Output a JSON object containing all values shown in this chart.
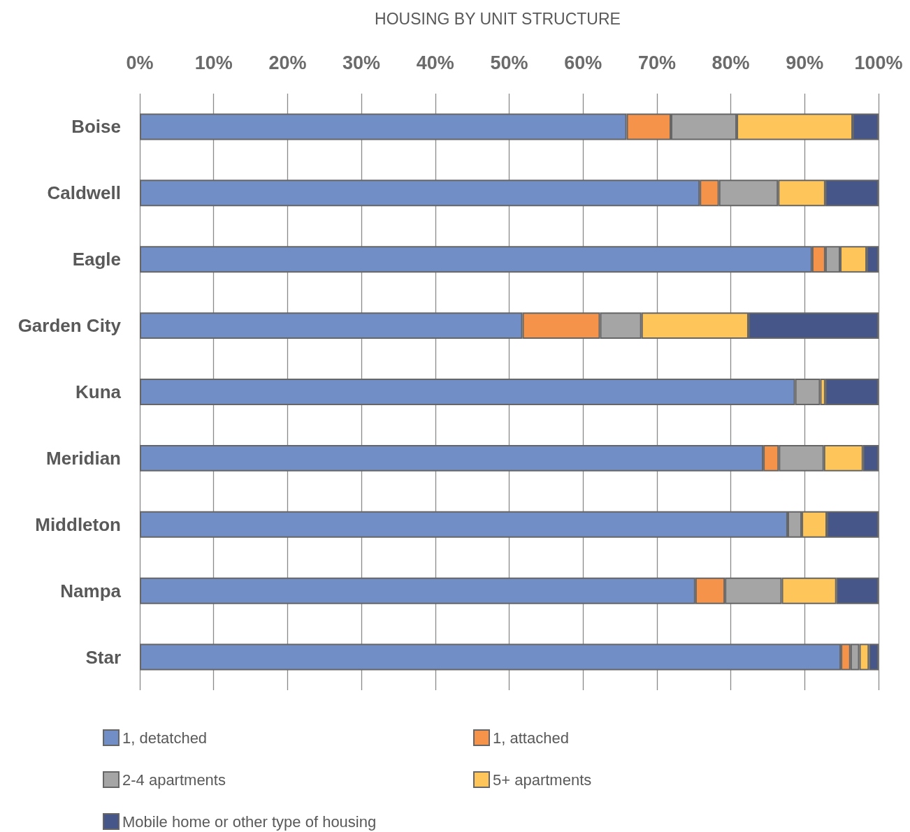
{
  "chart_data": {
    "type": "bar",
    "orientation": "horizontal",
    "stacked": true,
    "title": "HOUSING BY UNIT STRUCTURE",
    "categories": [
      "Boise",
      "Caldwell",
      "Eagle",
      "Garden City",
      "Kuna",
      "Meridian",
      "Middleton",
      "Nampa",
      "Star"
    ],
    "series": [
      {
        "name": "1, detatched",
        "color": "#728ec7",
        "values": [
          65.9,
          75.8,
          91.0,
          51.8,
          88.7,
          84.4,
          87.7,
          75.2,
          94.9
        ]
      },
      {
        "name": "1, attached",
        "color": "#f5934a",
        "values": [
          6.0,
          2.6,
          1.8,
          10.5,
          0,
          2.1,
          0,
          4.0,
          1.3
        ]
      },
      {
        "name": "2-4 apartments",
        "color": "#a5a5a5",
        "values": [
          8.9,
          8.0,
          2.0,
          5.6,
          3.4,
          6.1,
          1.9,
          7.7,
          1.2
        ]
      },
      {
        "name": "5+ apartments",
        "color": "#fec55a",
        "values": [
          15.7,
          6.4,
          3.6,
          14.5,
          0.7,
          5.3,
          3.4,
          7.4,
          1.3
        ]
      },
      {
        "name": "Mobile home or other type of housing",
        "color": "#465689",
        "values": [
          3.5,
          7.2,
          1.6,
          17.6,
          7.2,
          2.1,
          7.0,
          5.7,
          1.3
        ]
      }
    ],
    "xlim": [
      0,
      100
    ],
    "xticks": [
      {
        "value": 0,
        "label": "0%"
      },
      {
        "value": 10,
        "label": "10%"
      },
      {
        "value": 20,
        "label": "20%"
      },
      {
        "value": 30,
        "label": "30%"
      },
      {
        "value": 40,
        "label": "40%"
      },
      {
        "value": 50,
        "label": "50%"
      },
      {
        "value": 60,
        "label": "60%"
      },
      {
        "value": 70,
        "label": "70%"
      },
      {
        "value": 80,
        "label": "80%"
      },
      {
        "value": 90,
        "label": "90%"
      },
      {
        "value": 100,
        "label": "100%"
      }
    ],
    "grid": "x",
    "legend": "bottom"
  }
}
